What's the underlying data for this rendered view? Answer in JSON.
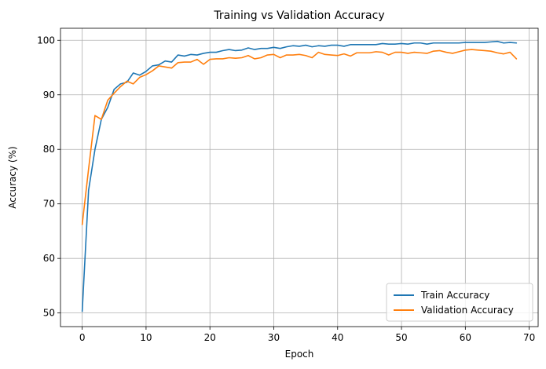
{
  "chart_data": {
    "type": "line",
    "title": "Training vs Validation Accuracy",
    "xlabel": "Epoch",
    "ylabel": "Accuracy (%)",
    "xlim": [
      -3.4,
      71.4
    ],
    "ylim": [
      47.5,
      102.2
    ],
    "xticks": [
      0,
      10,
      20,
      30,
      40,
      50,
      60,
      70
    ],
    "yticks": [
      50,
      60,
      70,
      80,
      90,
      100
    ],
    "grid": true,
    "legend_position": "lower-right",
    "x": [
      0,
      1,
      2,
      3,
      4,
      5,
      6,
      7,
      8,
      9,
      10,
      11,
      12,
      13,
      14,
      15,
      16,
      17,
      18,
      19,
      20,
      21,
      22,
      23,
      24,
      25,
      26,
      27,
      28,
      29,
      30,
      31,
      32,
      33,
      34,
      35,
      36,
      37,
      38,
      39,
      40,
      41,
      42,
      43,
      44,
      45,
      46,
      47,
      48,
      49,
      50,
      51,
      52,
      53,
      54,
      55,
      56,
      57,
      58,
      59,
      60,
      61,
      62,
      63,
      64,
      65,
      66,
      67,
      68
    ],
    "series": [
      {
        "name": "Train Accuracy",
        "color": "#1f77b4",
        "values": [
          50.3,
          72.5,
          80.0,
          85.5,
          87.7,
          91.0,
          92.0,
          92.3,
          94.0,
          93.6,
          94.3,
          95.3,
          95.5,
          96.2,
          96.0,
          97.3,
          97.1,
          97.4,
          97.3,
          97.6,
          97.8,
          97.8,
          98.1,
          98.3,
          98.1,
          98.2,
          98.6,
          98.3,
          98.5,
          98.5,
          98.7,
          98.5,
          98.8,
          99.0,
          98.9,
          99.1,
          98.8,
          99.0,
          98.9,
          99.1,
          99.1,
          98.9,
          99.2,
          99.2,
          99.2,
          99.2,
          99.2,
          99.4,
          99.3,
          99.3,
          99.4,
          99.3,
          99.5,
          99.5,
          99.3,
          99.5,
          99.5,
          99.5,
          99.5,
          99.5,
          99.6,
          99.6,
          99.6,
          99.6,
          99.7,
          99.8,
          99.5,
          99.6,
          99.5
        ]
      },
      {
        "name": "Validation Accuracy",
        "color": "#ff7f0e",
        "values": [
          66.2,
          76.4,
          86.2,
          85.5,
          89.0,
          90.3,
          91.5,
          92.5,
          92.0,
          93.2,
          93.7,
          94.4,
          95.3,
          95.1,
          94.9,
          95.9,
          96.0,
          96.0,
          96.5,
          95.6,
          96.5,
          96.6,
          96.6,
          96.8,
          96.7,
          96.8,
          97.2,
          96.6,
          96.8,
          97.3,
          97.4,
          96.8,
          97.3,
          97.3,
          97.4,
          97.2,
          96.8,
          97.8,
          97.4,
          97.3,
          97.2,
          97.5,
          97.1,
          97.7,
          97.7,
          97.7,
          97.9,
          97.8,
          97.3,
          97.8,
          97.8,
          97.6,
          97.8,
          97.7,
          97.6,
          98.0,
          98.1,
          97.8,
          97.6,
          97.9,
          98.2,
          98.3,
          98.2,
          98.1,
          98.0,
          97.7,
          97.5,
          97.8,
          96.6
        ]
      }
    ]
  }
}
